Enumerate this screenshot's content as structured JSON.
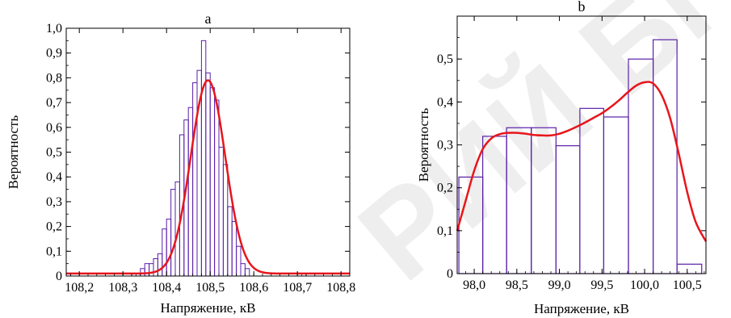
{
  "watermark": "РИЙ БГ",
  "chart_data": [
    {
      "type": "bar",
      "title": "a",
      "xlabel": "Напряжение, кВ",
      "ylabel": "Вероятность",
      "xlim": [
        108.17,
        108.82
      ],
      "ylim": [
        0,
        1.0
      ],
      "x_ticks": [
        108.2,
        108.3,
        108.4,
        108.5,
        108.6,
        108.7,
        108.8
      ],
      "x_tick_labels": [
        "108,2",
        "108,3",
        "108,4",
        "108,5",
        "108,6",
        "108,7",
        "108,8"
      ],
      "y_ticks": [
        0,
        0.1,
        0.2,
        0.3,
        0.4,
        0.5,
        0.6,
        0.7,
        0.8,
        0.9,
        1.0
      ],
      "y_tick_labels": [
        "0",
        "0,1",
        "0,2",
        "0,3",
        "0,4",
        "0,5",
        "0,6",
        "0,7",
        "0,8",
        "0,9",
        "1,0"
      ],
      "grid": false,
      "bar_color": "#5a1fa8",
      "curve_color": "#e8151b",
      "histogram": {
        "bin_width": 0.01,
        "bins": [
          {
            "x": 108.175,
            "y": 0.01
          },
          {
            "x": 108.325,
            "y": 0.01
          },
          {
            "x": 108.345,
            "y": 0.03
          },
          {
            "x": 108.355,
            "y": 0.05
          },
          {
            "x": 108.365,
            "y": 0.05
          },
          {
            "x": 108.375,
            "y": 0.07
          },
          {
            "x": 108.385,
            "y": 0.09
          },
          {
            "x": 108.395,
            "y": 0.19
          },
          {
            "x": 108.405,
            "y": 0.23
          },
          {
            "x": 108.415,
            "y": 0.35
          },
          {
            "x": 108.425,
            "y": 0.38
          },
          {
            "x": 108.435,
            "y": 0.57
          },
          {
            "x": 108.445,
            "y": 0.63
          },
          {
            "x": 108.455,
            "y": 0.68
          },
          {
            "x": 108.465,
            "y": 0.78
          },
          {
            "x": 108.475,
            "y": 0.83
          },
          {
            "x": 108.485,
            "y": 0.95
          },
          {
            "x": 108.495,
            "y": 0.82
          },
          {
            "x": 108.505,
            "y": 0.76
          },
          {
            "x": 108.515,
            "y": 0.71
          },
          {
            "x": 108.525,
            "y": 0.52
          },
          {
            "x": 108.535,
            "y": 0.45
          },
          {
            "x": 108.545,
            "y": 0.28
          },
          {
            "x": 108.555,
            "y": 0.22
          },
          {
            "x": 108.565,
            "y": 0.12
          },
          {
            "x": 108.575,
            "y": 0.05
          },
          {
            "x": 108.585,
            "y": 0.03
          },
          {
            "x": 108.715,
            "y": 0.01
          }
        ]
      },
      "curve": {
        "type": "gaussian",
        "mean": 108.495,
        "peak": 0.79,
        "sigma": 0.0395,
        "baseline": 0.01
      }
    },
    {
      "type": "bar",
      "title": "b",
      "xlabel": "Напряжение, кВ",
      "ylabel": "Вероятность",
      "xlim": [
        97.8,
        100.72
      ],
      "ylim": [
        0,
        0.6
      ],
      "x_ticks": [
        98.0,
        98.5,
        99.0,
        99.5,
        100.0,
        100.5
      ],
      "x_tick_labels": [
        "98,0",
        "98,5",
        "99,0",
        "99,5",
        "100,0",
        "100,5"
      ],
      "y_ticks": [
        0,
        0.1,
        0.2,
        0.3,
        0.4,
        0.5
      ],
      "y_tick_labels": [
        "0",
        "0,1",
        "0,2",
        "0,3",
        "0,4",
        "0,5"
      ],
      "grid": false,
      "bar_color": "#5a1fa8",
      "curve_color": "#e8151b",
      "histogram": {
        "bars": [
          {
            "x0": 97.82,
            "x1": 98.1,
            "y": 0.225
          },
          {
            "x0": 98.1,
            "x1": 98.38,
            "y": 0.32
          },
          {
            "x0": 98.38,
            "x1": 98.67,
            "y": 0.34
          },
          {
            "x0": 98.67,
            "x1": 98.96,
            "y": 0.34
          },
          {
            "x0": 98.96,
            "x1": 99.24,
            "y": 0.298
          },
          {
            "x0": 99.24,
            "x1": 99.52,
            "y": 0.385
          },
          {
            "x0": 99.52,
            "x1": 99.81,
            "y": 0.365
          },
          {
            "x0": 99.81,
            "x1": 100.1,
            "y": 0.5
          },
          {
            "x0": 100.1,
            "x1": 100.38,
            "y": 0.545
          },
          {
            "x0": 100.38,
            "x1": 100.67,
            "y": 0.022
          }
        ]
      },
      "curve": {
        "points": [
          [
            97.8,
            0.1
          ],
          [
            97.9,
            0.17
          ],
          [
            98.0,
            0.24
          ],
          [
            98.1,
            0.29
          ],
          [
            98.2,
            0.315
          ],
          [
            98.3,
            0.325
          ],
          [
            98.4,
            0.328
          ],
          [
            98.5,
            0.328
          ],
          [
            98.6,
            0.326
          ],
          [
            98.7,
            0.323
          ],
          [
            98.8,
            0.322
          ],
          [
            98.9,
            0.322
          ],
          [
            99.0,
            0.326
          ],
          [
            99.1,
            0.333
          ],
          [
            99.2,
            0.342
          ],
          [
            99.3,
            0.352
          ],
          [
            99.4,
            0.363
          ],
          [
            99.5,
            0.374
          ],
          [
            99.6,
            0.388
          ],
          [
            99.7,
            0.404
          ],
          [
            99.8,
            0.422
          ],
          [
            99.9,
            0.438
          ],
          [
            100.0,
            0.446
          ],
          [
            100.1,
            0.443
          ],
          [
            100.2,
            0.416
          ],
          [
            100.3,
            0.362
          ],
          [
            100.4,
            0.28
          ],
          [
            100.5,
            0.19
          ],
          [
            100.6,
            0.12
          ],
          [
            100.72,
            0.075
          ]
        ]
      }
    }
  ]
}
